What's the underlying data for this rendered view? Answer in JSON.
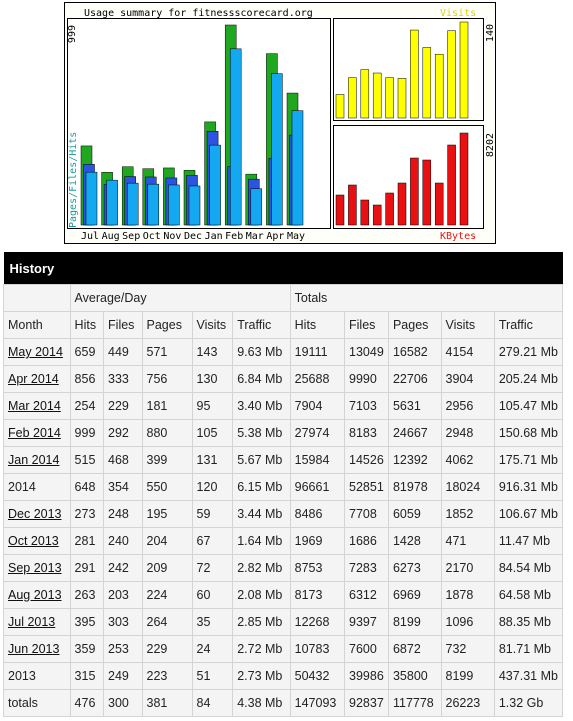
{
  "chart_data": [
    {
      "type": "bar",
      "title": "Usage summary for fitnessscorecard.org",
      "y_label": "Pages/Files/Hits",
      "categories": [
        "Jul",
        "Aug",
        "Sep",
        "Oct",
        "Nov",
        "Dec",
        "Jan",
        "Feb",
        "Mar",
        "Apr",
        "May"
      ],
      "series": [
        {
          "name": "Hits",
          "color": "#1fa81f",
          "values": [
            395,
            263,
            291,
            281,
            285,
            273,
            515,
            999,
            254,
            856,
            659
          ]
        },
        {
          "name": "Files",
          "color": "#2b55e0",
          "values": [
            303,
            203,
            242,
            240,
            235,
            248,
            468,
            292,
            229,
            333,
            449
          ]
        },
        {
          "name": "Pages",
          "color": "#14a8f0",
          "values": [
            264,
            224,
            209,
            204,
            200,
            195,
            399,
            880,
            181,
            756,
            571
          ]
        }
      ],
      "ylim": [
        0,
        999
      ],
      "yticks": [
        999
      ]
    },
    {
      "type": "bar",
      "title": "Visits",
      "color": "#ffff00",
      "values": [
        35,
        60,
        72,
        67,
        60,
        59,
        131,
        105,
        95,
        130,
        143
      ],
      "ylim": [
        0,
        143
      ],
      "yticks": [
        140
      ]
    },
    {
      "type": "bar",
      "title": "KBytes",
      "color": "#e81010",
      "values": [
        2675,
        3566,
        2229,
        1783,
        2853,
        3744,
        5973,
        5795,
        3744,
        7132,
        8202
      ],
      "ylim": [
        0,
        8202
      ],
      "yticks": [
        8202
      ]
    }
  ],
  "history": {
    "title": "History",
    "groups": [
      "Average/Day",
      "Totals"
    ],
    "columns": [
      "Month",
      "Hits",
      "Files",
      "Pages",
      "Visits",
      "Traffic",
      "Hits",
      "Files",
      "Pages",
      "Visits",
      "Traffic"
    ],
    "rows": [
      [
        "May 2014",
        "659",
        "449",
        "571",
        "143",
        "9.63 Mb",
        "19111",
        "13049",
        "16582",
        "4154",
        "279.21 Mb"
      ],
      [
        "Apr 2014",
        "856",
        "333",
        "756",
        "130",
        "6.84 Mb",
        "25688",
        "9990",
        "22706",
        "3904",
        "205.24 Mb"
      ],
      [
        "Mar 2014",
        "254",
        "229",
        "181",
        "95",
        "3.40 Mb",
        "7904",
        "7103",
        "5631",
        "2956",
        "105.47 Mb"
      ],
      [
        "Feb 2014",
        "999",
        "292",
        "880",
        "105",
        "5.38 Mb",
        "27974",
        "8183",
        "24667",
        "2948",
        "150.68 Mb"
      ],
      [
        "Jan 2014",
        "515",
        "468",
        "399",
        "131",
        "5.67 Mb",
        "15984",
        "14526",
        "12392",
        "4062",
        "175.71 Mb"
      ],
      [
        "2014",
        "648",
        "354",
        "550",
        "120",
        "6.15 Mb",
        "96661",
        "52851",
        "81978",
        "18024",
        "916.31 Mb"
      ],
      [
        "Dec 2013",
        "273",
        "248",
        "195",
        "59",
        "3.44 Mb",
        "8486",
        "7708",
        "6059",
        "1852",
        "106.67 Mb"
      ],
      [
        "Oct 2013",
        "281",
        "240",
        "204",
        "67",
        "1.64 Mb",
        "1969",
        "1686",
        "1428",
        "471",
        "11.47 Mb"
      ],
      [
        "Sep 2013",
        "291",
        "242",
        "209",
        "72",
        "2.82 Mb",
        "8753",
        "7283",
        "6273",
        "2170",
        "84.54 Mb"
      ],
      [
        "Aug 2013",
        "263",
        "203",
        "224",
        "60",
        "2.08 Mb",
        "8173",
        "6312",
        "6969",
        "1878",
        "64.58 Mb"
      ],
      [
        "Jul 2013",
        "395",
        "303",
        "264",
        "35",
        "2.85 Mb",
        "12268",
        "9397",
        "8199",
        "1096",
        "88.35 Mb"
      ],
      [
        "Jun 2013",
        "359",
        "253",
        "229",
        "24",
        "2.72 Mb",
        "10783",
        "7600",
        "6872",
        "732",
        "81.71 Mb"
      ],
      [
        "2013",
        "315",
        "249",
        "223",
        "51",
        "2.73 Mb",
        "50432",
        "39986",
        "35800",
        "8199",
        "437.31 Mb"
      ],
      [
        "totals",
        "476",
        "300",
        "381",
        "84",
        "4.38 Mb",
        "147093",
        "92837",
        "117778",
        "26223",
        "1.32 Gb"
      ]
    ]
  }
}
